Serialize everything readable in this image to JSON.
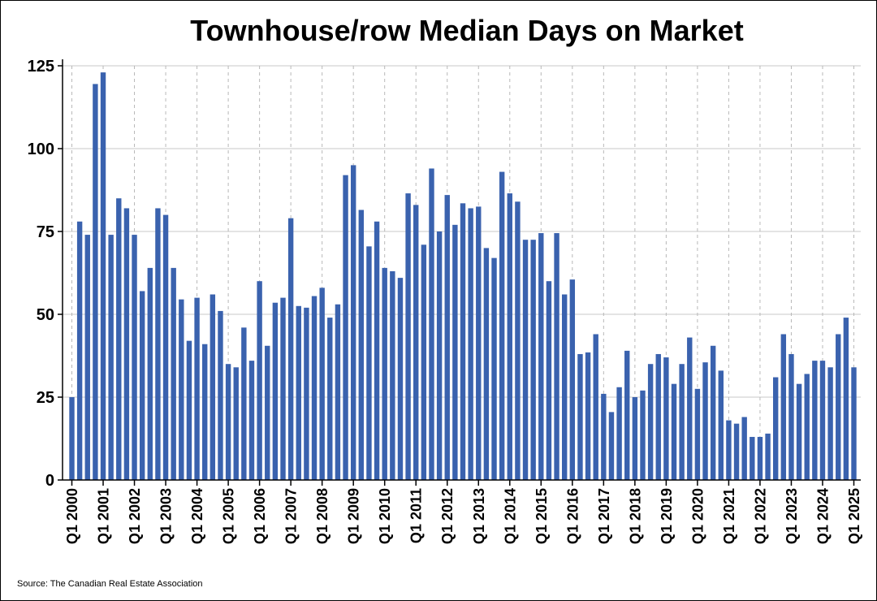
{
  "title": "Townhouse/row Median Days on Market",
  "source": "Source: The Canadian Real Estate Association",
  "chart_data": {
    "type": "bar",
    "title": "Townhouse/row Median Days on Market",
    "xlabel": "",
    "ylabel": "",
    "ylim": [
      0,
      125
    ],
    "yticks": [
      0,
      25,
      50,
      75,
      100,
      125
    ],
    "grid": true,
    "bar_color": "#3a62ae",
    "categories": [
      "Q1 2000",
      "Q2 2000",
      "Q3 2000",
      "Q4 2000",
      "Q1 2001",
      "Q2 2001",
      "Q3 2001",
      "Q4 2001",
      "Q1 2002",
      "Q2 2002",
      "Q3 2002",
      "Q4 2002",
      "Q1 2003",
      "Q2 2003",
      "Q3 2003",
      "Q4 2003",
      "Q1 2004",
      "Q2 2004",
      "Q3 2004",
      "Q4 2004",
      "Q1 2005",
      "Q2 2005",
      "Q3 2005",
      "Q4 2005",
      "Q1 2006",
      "Q2 2006",
      "Q3 2006",
      "Q4 2006",
      "Q1 2007",
      "Q2 2007",
      "Q3 2007",
      "Q4 2007",
      "Q1 2008",
      "Q2 2008",
      "Q3 2008",
      "Q4 2008",
      "Q1 2009",
      "Q2 2009",
      "Q3 2009",
      "Q4 2009",
      "Q1 2010",
      "Q2 2010",
      "Q3 2010",
      "Q4 2010",
      "Q1 2011",
      "Q2 2011",
      "Q3 2011",
      "Q4 2011",
      "Q1 2012",
      "Q2 2012",
      "Q3 2012",
      "Q4 2012",
      "Q1 2013",
      "Q2 2013",
      "Q3 2013",
      "Q4 2013",
      "Q1 2014",
      "Q2 2014",
      "Q3 2014",
      "Q4 2014",
      "Q1 2015",
      "Q2 2015",
      "Q3 2015",
      "Q4 2015",
      "Q1 2016",
      "Q2 2016",
      "Q3 2016",
      "Q4 2016",
      "Q1 2017",
      "Q2 2017",
      "Q3 2017",
      "Q4 2017",
      "Q1 2018",
      "Q2 2018",
      "Q3 2018",
      "Q4 2018",
      "Q1 2019",
      "Q2 2019",
      "Q3 2019",
      "Q4 2019",
      "Q1 2020",
      "Q2 2020",
      "Q3 2020",
      "Q4 2020",
      "Q1 2021",
      "Q2 2021",
      "Q3 2021",
      "Q4 2021",
      "Q1 2022",
      "Q2 2022",
      "Q3 2022",
      "Q4 2022",
      "Q1 2023",
      "Q2 2023",
      "Q3 2023",
      "Q4 2023",
      "Q1 2024",
      "Q2 2024",
      "Q3 2024",
      "Q4 2024",
      "Q1 2025"
    ],
    "tick_labels": [
      "Q1 2000",
      "Q1 2001",
      "Q1 2002",
      "Q1 2003",
      "Q1 2004",
      "Q1 2005",
      "Q1 2006",
      "Q1 2007",
      "Q1 2008",
      "Q1 2009",
      "Q1 2010",
      "Q1 2011",
      "Q1 2012",
      "Q1 2013",
      "Q1 2014",
      "Q1 2015",
      "Q1 2016",
      "Q1 2017",
      "Q1 2018",
      "Q1 2019",
      "Q1 2020",
      "Q1 2021",
      "Q1 2022",
      "Q1 2023",
      "Q1 2024",
      "Q1 2025"
    ],
    "values": [
      25,
      78,
      74,
      119.5,
      123,
      74,
      85,
      82,
      74,
      57,
      64,
      82,
      80,
      64,
      54.5,
      42,
      55,
      41,
      56,
      51,
      35,
      34,
      46,
      36,
      60,
      40.5,
      53.5,
      55,
      79,
      52.5,
      52,
      55.5,
      58,
      49,
      53,
      92,
      95,
      81.5,
      70.5,
      78,
      64,
      63,
      61,
      86.5,
      83,
      71,
      94,
      75,
      86,
      77,
      83.5,
      82,
      82.5,
      70,
      67,
      93,
      86.5,
      84,
      72.5,
      72.5,
      74.5,
      60,
      74.5,
      56,
      60.5,
      38,
      38.5,
      44,
      26,
      20.5,
      28,
      39,
      25,
      27,
      35,
      38,
      37,
      29,
      35,
      43,
      27.5,
      35.5,
      40.5,
      33,
      18,
      17,
      19,
      13,
      13,
      14,
      31,
      44,
      38,
      29,
      32,
      36,
      36,
      34,
      44,
      49,
      34
    ]
  }
}
